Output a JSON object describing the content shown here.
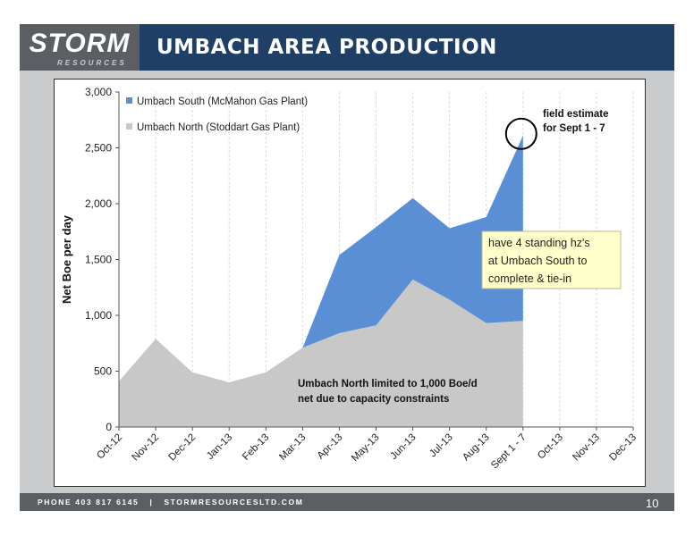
{
  "header": {
    "logo_main": "STORM",
    "logo_sub": "RESOURCES",
    "title": "UMBACH AREA PRODUCTION"
  },
  "footer": {
    "phone": "PHONE 403 817 6145",
    "separator": "|",
    "website": "STORMRESOURCESLTD.COM",
    "page_number": "10"
  },
  "colors": {
    "header_bg": "#1f3f66",
    "south_fill": "#5a8fd6",
    "north_fill": "#c8c8c8",
    "callout_bg": "#ffffcc",
    "marker_circle": "#000000"
  },
  "chart_data": {
    "type": "area",
    "stacked": true,
    "ylabel": "Net Boe per day",
    "xlabel": "",
    "ylim": [
      0,
      3000
    ],
    "yticks": [
      "0",
      "500",
      "1,000",
      "1,500",
      "2,000",
      "2,500",
      "3,000"
    ],
    "ytick_values": [
      0,
      500,
      1000,
      1500,
      2000,
      2500,
      3000
    ],
    "categories": [
      "Oct-12",
      "Nov-12",
      "Dec-12",
      "Jan-13",
      "Feb-13",
      "Mar-13",
      "Apr-13",
      "May-13",
      "Jun-13",
      "Jul-13",
      "Aug-13",
      "Sept 1 - 7",
      "Oct-13",
      "Nov-13",
      "Dec-13"
    ],
    "grid": "vertical",
    "legend_position": "top-left",
    "series": [
      {
        "name": "Umbach South (McMahon Gas Plant)",
        "values": [
          0,
          0,
          0,
          0,
          0,
          0,
          700,
          880,
          730,
          640,
          950,
          1660,
          null,
          null,
          null
        ]
      },
      {
        "name": "Umbach North (Stoddart Gas Plant)",
        "values": [
          410,
          790,
          490,
          400,
          490,
          710,
          840,
          910,
          1320,
          1140,
          930,
          950,
          null,
          null,
          null
        ]
      }
    ],
    "annotations": {
      "field_estimate": "field estimate\nfor Sept 1 - 7",
      "callout": "have 4 standing hz's\nat Umbach South to\ncomplete & tie-in",
      "north_note": "Umbach North limited to 1,000 Boe/d\nnet due to capacity constraints"
    }
  }
}
